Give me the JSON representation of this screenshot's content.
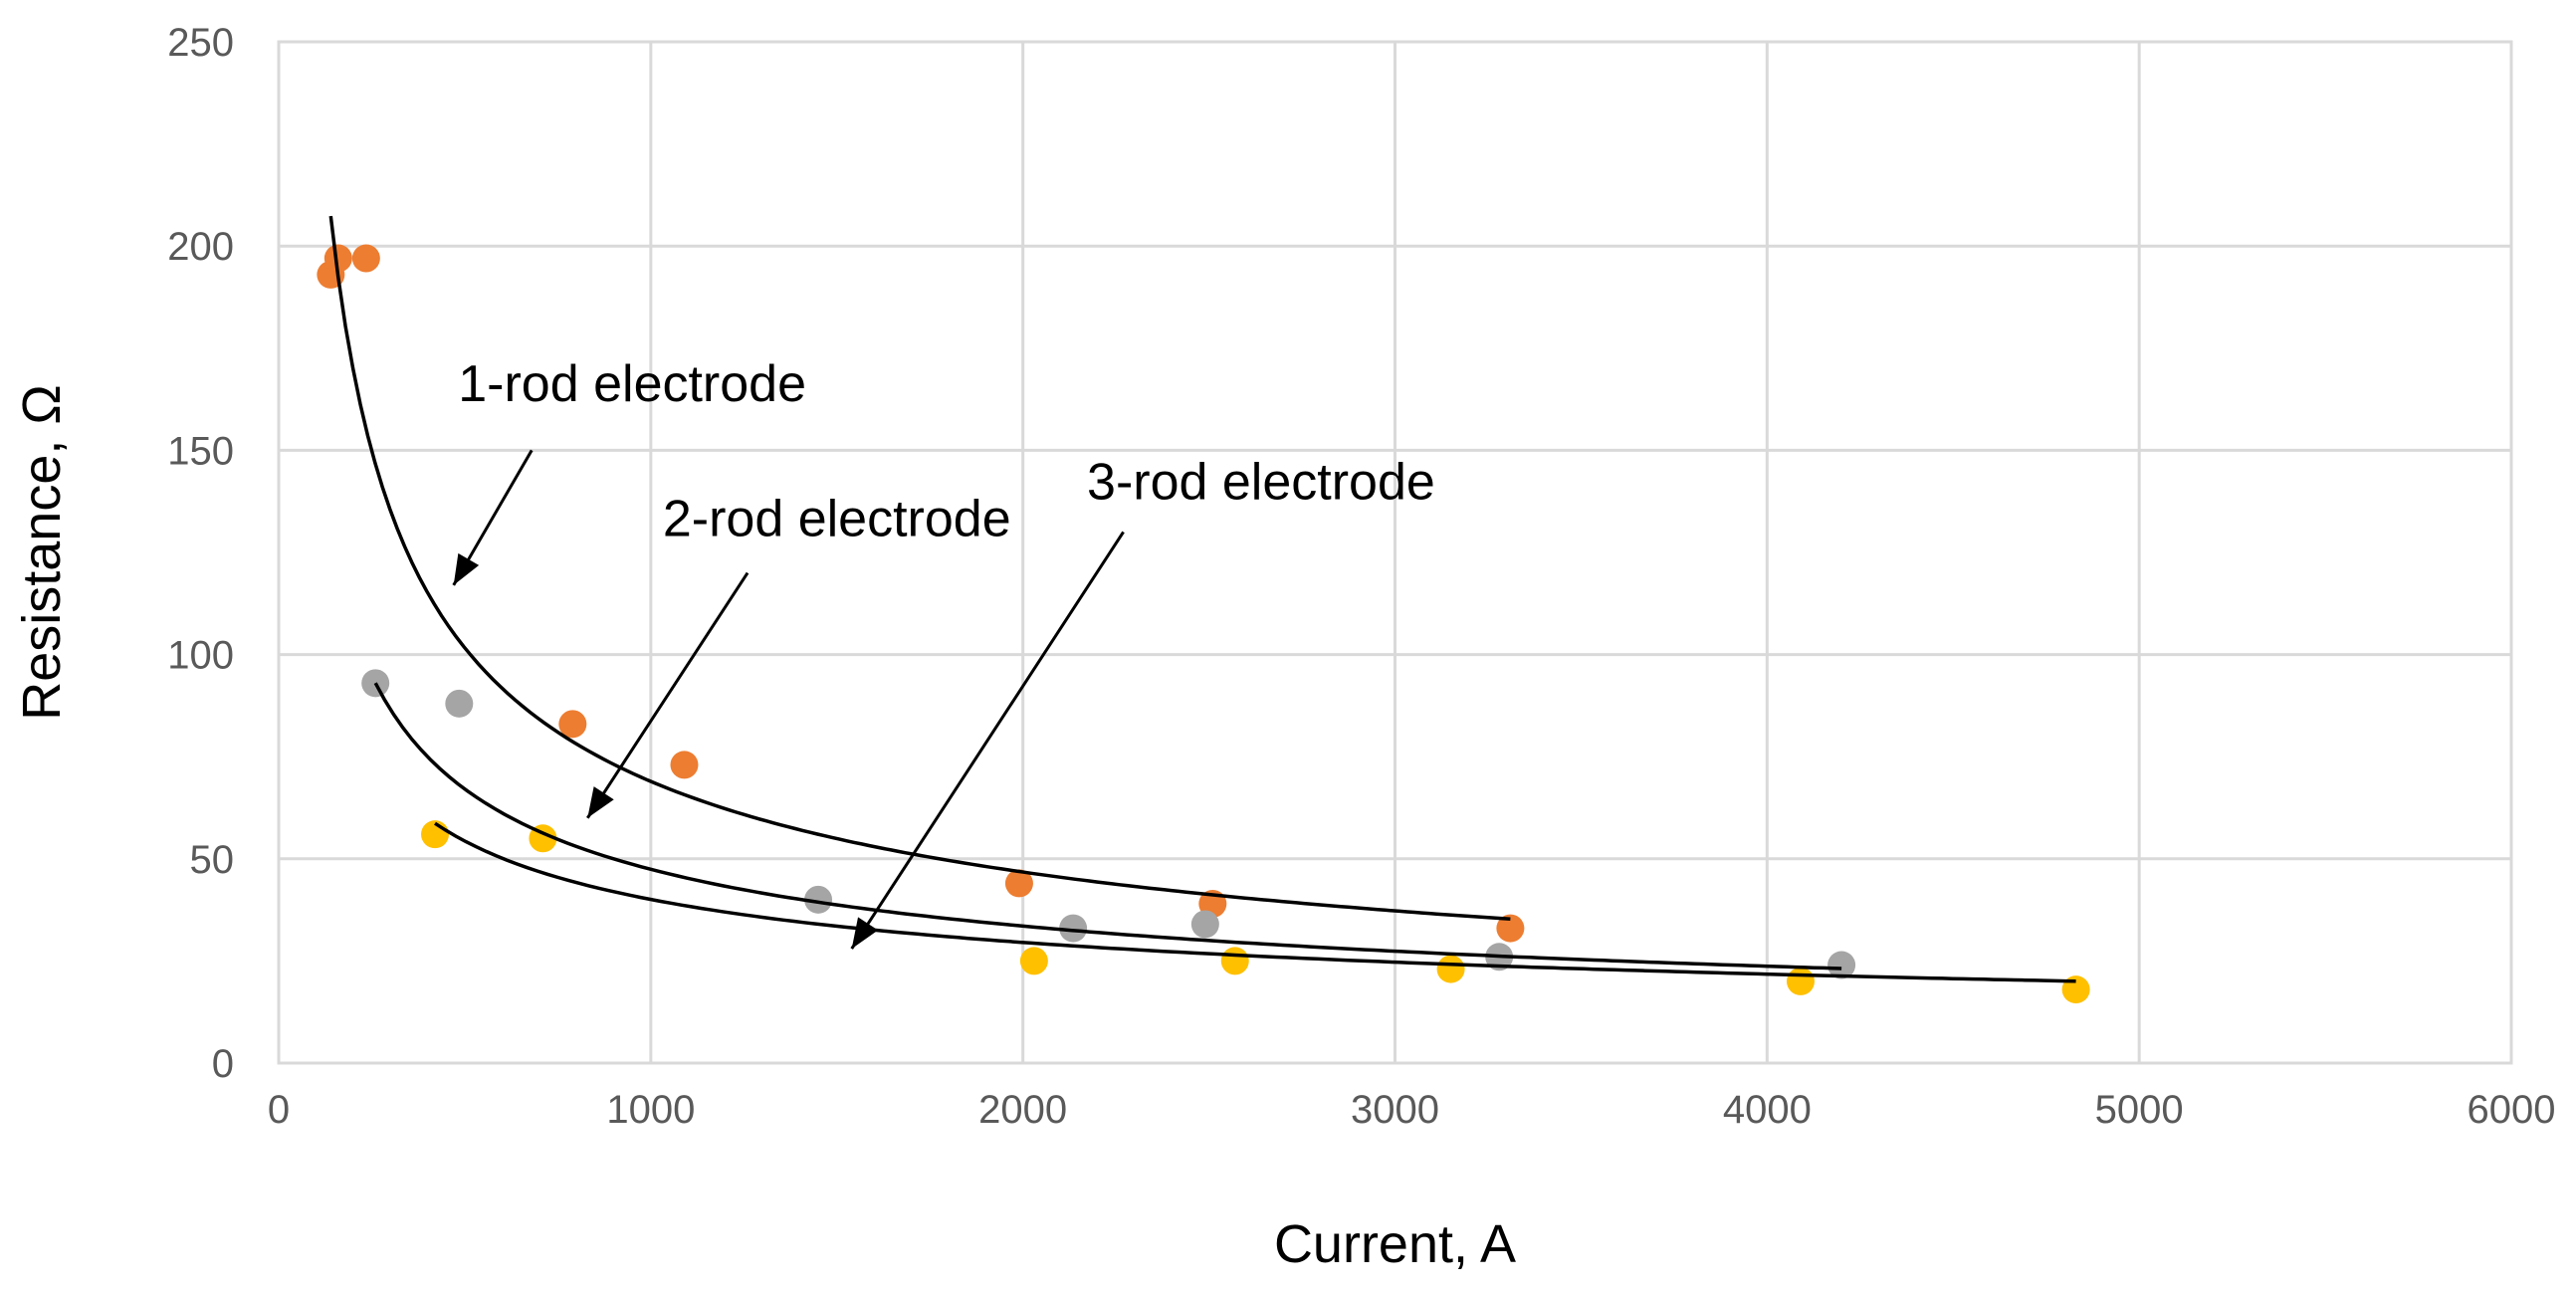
{
  "chart_data": {
    "type": "scatter",
    "xlabel": "Current, A",
    "ylabel": "Resistance, Ω",
    "xlim": [
      0,
      6000
    ],
    "ylim": [
      0,
      250
    ],
    "x_ticks": [
      "0",
      "1000",
      "2000",
      "3000",
      "4000",
      "5000",
      "6000"
    ],
    "y_ticks": [
      "0",
      "50",
      "100",
      "150",
      "200",
      "250"
    ],
    "grid": true,
    "colors": {
      "one_rod": "#ED7D31",
      "two_rod": "#A5A5A5",
      "three_rod": "#FFC000",
      "fit": "#000000"
    },
    "series": [
      {
        "name": "1-rod electrode",
        "color": "#ED7D31",
        "points": [
          [
            140,
            193
          ],
          [
            160,
            197
          ],
          [
            235,
            197
          ],
          [
            790,
            83
          ],
          [
            1090,
            73
          ],
          [
            1990,
            44
          ],
          [
            2510,
            39
          ],
          [
            3310,
            33
          ]
        ],
        "fit": {
          "a": 3300,
          "b": -0.56,
          "x_start": 140,
          "x_end": 3310
        }
      },
      {
        "name": "2-rod electrode",
        "color": "#A5A5A5",
        "points": [
          [
            260,
            93
          ],
          [
            485,
            88
          ],
          [
            1450,
            40
          ],
          [
            2135,
            33
          ],
          [
            2490,
            34
          ],
          [
            3280,
            26
          ],
          [
            4200,
            24
          ]
        ],
        "fit": {
          "a": 1500,
          "b": -0.5,
          "x_start": 260,
          "x_end": 4200
        }
      },
      {
        "name": "3-rod electrode",
        "color": "#FFC000",
        "points": [
          [
            420,
            56
          ],
          [
            710,
            55
          ],
          [
            2030,
            25
          ],
          [
            2570,
            25
          ],
          [
            3150,
            23
          ],
          [
            4090,
            20
          ],
          [
            4830,
            18
          ]
        ],
        "fit": {
          "a": 837,
          "b": -0.44,
          "x_start": 420,
          "x_end": 4830
        }
      }
    ],
    "annotations": [
      {
        "text": "1-rod electrode",
        "text_x": 950,
        "text_y": 162,
        "arrow_from": [
          680,
          150
        ],
        "arrow_to": [
          470,
          117
        ]
      },
      {
        "text": "2-rod electrode",
        "text_x": 1500,
        "text_y": 129,
        "arrow_from": [
          1260,
          120
        ],
        "arrow_to": [
          830,
          60
        ]
      },
      {
        "text": "3-rod electrode",
        "text_x": 2640,
        "text_y": 138,
        "arrow_from": [
          2270,
          130
        ],
        "arrow_to": [
          1540,
          28
        ]
      }
    ]
  }
}
